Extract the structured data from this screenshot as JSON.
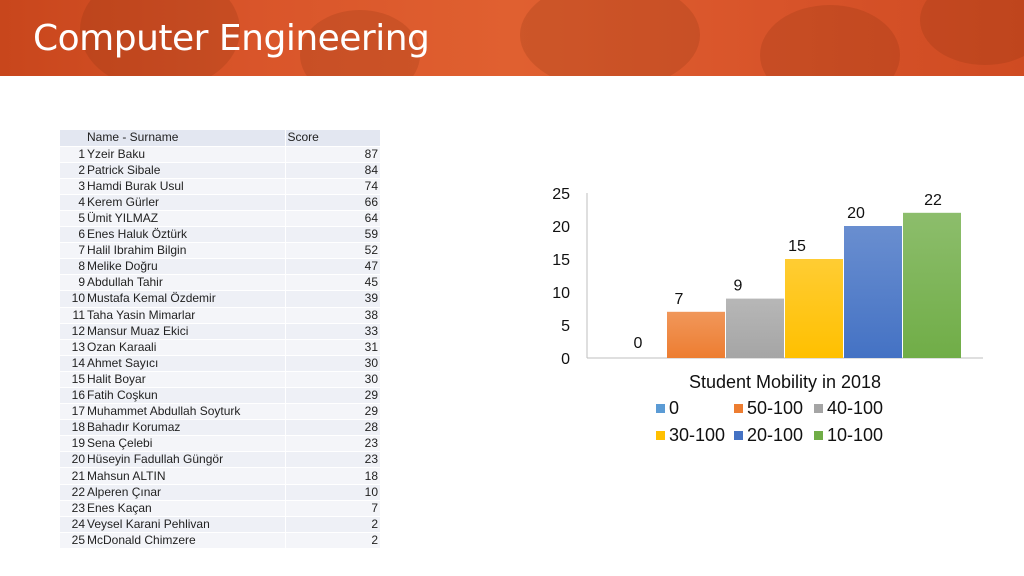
{
  "header": {
    "title": "Computer Engineering"
  },
  "table": {
    "columns": [
      "Name - Surname",
      "Score"
    ],
    "rows": [
      {
        "no": "1",
        "name": "Yzeir Baku",
        "score": "87"
      },
      {
        "no": "2",
        "name": "Patrick Sibale",
        "score": "84"
      },
      {
        "no": "3",
        "name": "Hamdi Burak Usul",
        "score": "74"
      },
      {
        "no": "4",
        "name": "Kerem Gürler",
        "score": "66"
      },
      {
        "no": "5",
        "name": "Ümit YILMAZ",
        "score": "64"
      },
      {
        "no": "6",
        "name": "Enes Haluk Öztürk",
        "score": "59"
      },
      {
        "no": "7",
        "name": "Halil Ibrahim Bilgin",
        "score": "52"
      },
      {
        "no": "8",
        "name": "Melike Doğru",
        "score": "47"
      },
      {
        "no": "9",
        "name": "Abdullah Tahir",
        "score": "45"
      },
      {
        "no": "10",
        "name": "Mustafa Kemal Özdemir",
        "score": "39"
      },
      {
        "no": "11",
        "name": "Taha Yasin Mimarlar",
        "score": "38"
      },
      {
        "no": "12",
        "name": "Mansur Muaz Ekici",
        "score": "33"
      },
      {
        "no": "13",
        "name": "Ozan Karaali",
        "score": "31"
      },
      {
        "no": "14",
        "name": "Ahmet Sayıcı",
        "score": "30"
      },
      {
        "no": "15",
        "name": "Halit Boyar",
        "score": "30"
      },
      {
        "no": "16",
        "name": "Fatih Coşkun",
        "score": "29"
      },
      {
        "no": "17",
        "name": "Muhammet Abdullah Soyturk",
        "score": "29"
      },
      {
        "no": "18",
        "name": "Bahadır Korumaz",
        "score": "28"
      },
      {
        "no": "19",
        "name": "Sena Çelebi",
        "score": "23"
      },
      {
        "no": "20",
        "name": "Hüseyin Fadullah Güngör",
        "score": "23"
      },
      {
        "no": "21",
        "name": "Mahsun ALTIN",
        "score": "18"
      },
      {
        "no": "22",
        "name": "Alperen Çınar",
        "score": "10"
      },
      {
        "no": "23",
        "name": "Enes Kaçan",
        "score": "7"
      },
      {
        "no": "24",
        "name": "Veysel Karani Pehlivan",
        "score": "2"
      },
      {
        "no": "25",
        "name": "McDonald Chimzere",
        "score": "2"
      }
    ]
  },
  "chart_data": {
    "type": "bar",
    "xlabel": "Student Mobility in 2018",
    "ylabel": "",
    "ylim": [
      0,
      25
    ],
    "yticks": [
      0,
      5,
      10,
      15,
      20,
      25
    ],
    "grid": false,
    "legend_position": "bottom",
    "series": [
      {
        "name": "0",
        "value": 0,
        "color": "#5b9bd5"
      },
      {
        "name": "50-100",
        "value": 7,
        "color": "#ed7d31"
      },
      {
        "name": "40-100",
        "value": 9,
        "color": "#a5a5a5"
      },
      {
        "name": "30-100",
        "value": 15,
        "color": "#ffc000"
      },
      {
        "name": "20-100",
        "value": 20,
        "color": "#4472c4"
      },
      {
        "name": "10-100",
        "value": 22,
        "color": "#70ad47"
      }
    ]
  }
}
